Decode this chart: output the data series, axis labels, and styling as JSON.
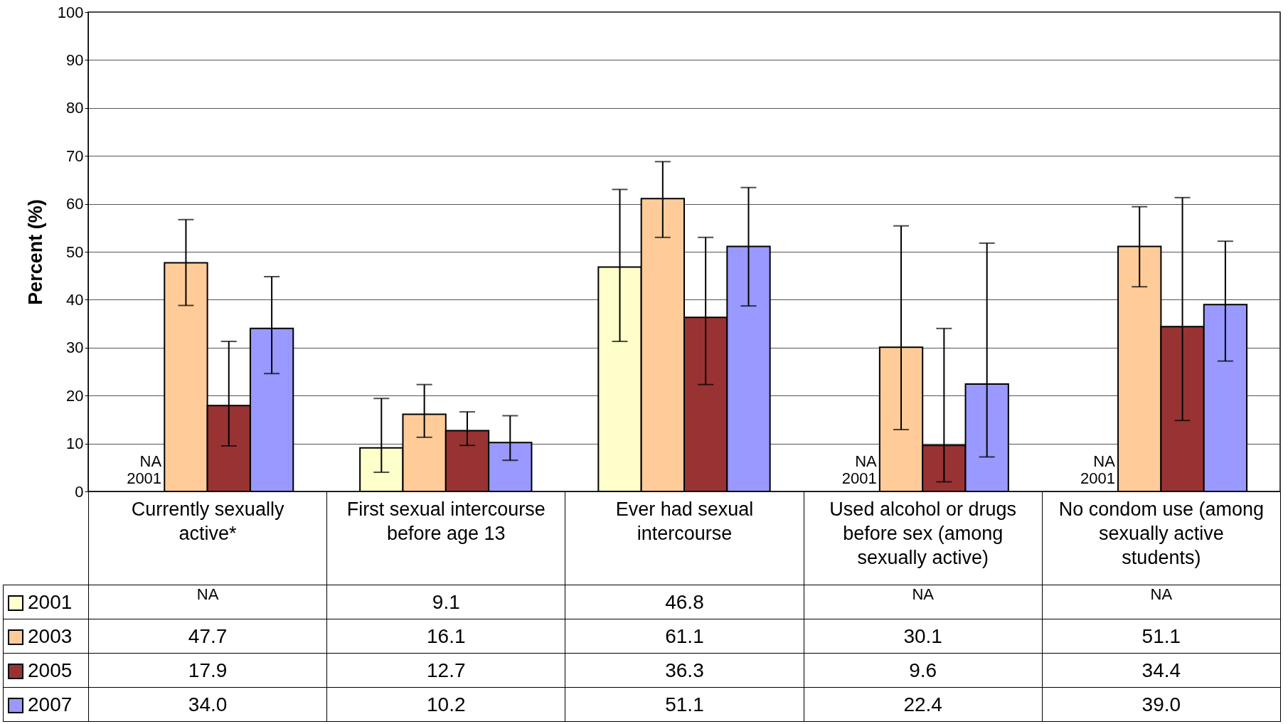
{
  "chart_data": {
    "type": "bar",
    "ylabel": "Percent (%)",
    "categories": [
      "Currently sexually active*",
      "First sexual intercourse before age 13",
      "Ever had sexual intercourse",
      "Used alcohol or drugs before sex (among sexually active)",
      "No condom use (among sexually active students)"
    ],
    "series": [
      {
        "name": "2001",
        "color": "#ffffcc",
        "values": [
          null,
          9.1,
          46.8,
          null,
          null
        ],
        "value_labels": [
          "NA",
          "9.1",
          "46.8",
          "NA",
          "NA"
        ],
        "errors": [
          null,
          [
            4.0,
            19.4
          ],
          [
            31.3,
            63.0
          ],
          null,
          null
        ]
      },
      {
        "name": "2003",
        "color": "#ffcc99",
        "values": [
          47.7,
          16.1,
          61.1,
          30.1,
          51.1
        ],
        "value_labels": [
          "47.7",
          "16.1",
          "61.1",
          "30.1",
          "51.1"
        ],
        "errors": [
          [
            38.8,
            56.7
          ],
          [
            11.3,
            22.3
          ],
          [
            53.0,
            68.8
          ],
          [
            12.9,
            55.4
          ],
          [
            42.7,
            59.4
          ]
        ]
      },
      {
        "name": "2005",
        "color": "#993333",
        "values": [
          17.9,
          12.7,
          36.3,
          9.6,
          34.4
        ],
        "value_labels": [
          "17.9",
          "12.7",
          "36.3",
          "9.6",
          "34.4"
        ],
        "errors": [
          [
            9.5,
            31.3
          ],
          [
            9.6,
            16.6
          ],
          [
            22.3,
            53.0
          ],
          [
            2.0,
            34.0
          ],
          [
            14.8,
            61.3
          ]
        ]
      },
      {
        "name": "2007",
        "color": "#9999ff",
        "values": [
          34.0,
          10.2,
          51.1,
          22.4,
          39.0
        ],
        "value_labels": [
          "34.0",
          "10.2",
          "51.1",
          "22.4",
          "39.0"
        ],
        "errors": [
          [
            24.6,
            44.8
          ],
          [
            6.5,
            15.8
          ],
          [
            38.7,
            63.4
          ],
          [
            7.2,
            51.8
          ],
          [
            27.2,
            52.2
          ]
        ]
      }
    ],
    "ylim": [
      0,
      100
    ],
    "yticks": [
      0,
      10,
      20,
      30,
      40,
      50,
      60,
      70,
      80,
      90,
      100
    ],
    "grid": "y",
    "legend": "bottom",
    "annotations": [
      "NA\n2001",
      "NA\n2001",
      "NA\n2001"
    ]
  }
}
